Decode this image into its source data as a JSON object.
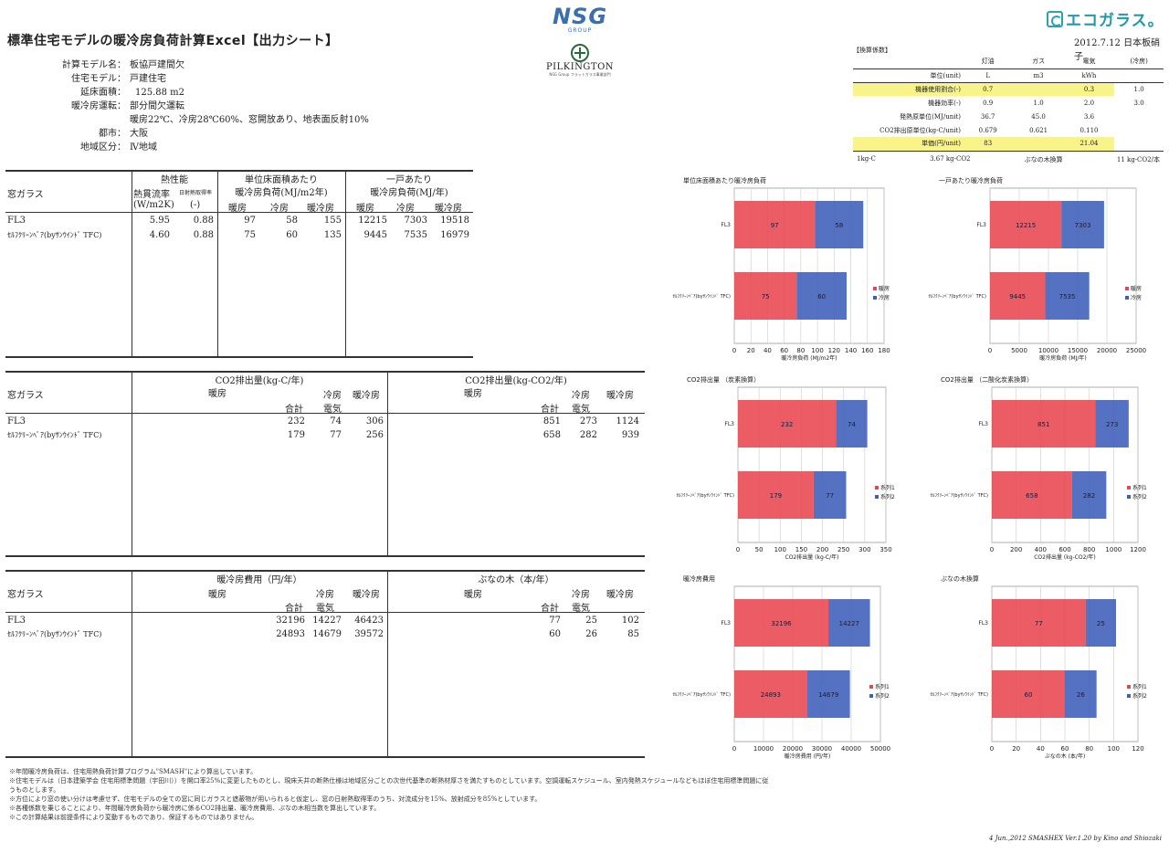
{
  "header": {
    "title": "標準住宅モデルの暖冷房負荷計算Excel【出力シート】",
    "date_company": "2012.7.12 日本板硝子",
    "nsg_logo": "NSG",
    "nsg_group": "GROUP",
    "pilkington_logo": "PILKINGTON",
    "pilkington_sub": "NSG Group フラットガラス事業部門",
    "eco_logo": "エコガラス。"
  },
  "info": [
    {
      "label": "計算モデル名：",
      "value": "板協戸建間欠"
    },
    {
      "label": "住宅モデル：",
      "value": "戸建住宅"
    },
    {
      "label": "延床面積：",
      "value": "125.88 m2"
    },
    {
      "label": "暖冷房運転：",
      "value": "部分間欠運転"
    },
    {
      "label": "",
      "value": "暖房22℃、冷房28℃60%、窓開放あり、地表面反射10%"
    },
    {
      "label": "都市：",
      "value": "大阪"
    },
    {
      "label": "地域区分：",
      "value": "Ⅳ地域"
    }
  ],
  "coef": {
    "title": "【換算係数】",
    "cols": [
      "灯油",
      "ガス",
      "電気",
      "(冷房)"
    ],
    "units_label": "単位(unit)",
    "units": [
      "L",
      "m3",
      "kWh",
      ""
    ],
    "rows": [
      {
        "label": "機器使用割合(-)",
        "v": [
          "0.7",
          "",
          "0.3",
          "1.0"
        ],
        "hl": [
          true,
          true,
          true,
          false
        ],
        "hl_label": true
      },
      {
        "label": "機器効率(-)",
        "v": [
          "0.9",
          "1.0",
          "2.0",
          "3.0"
        ],
        "hl": [
          false,
          false,
          false,
          false
        ],
        "hl_label": false
      },
      {
        "label": "発熱原単位(MJ/unit)",
        "v": [
          "36.7",
          "45.0",
          "3.6",
          ""
        ],
        "hl": [
          false,
          false,
          false,
          false
        ],
        "hl_label": false
      },
      {
        "label": "CO2排出原単位(kg-C/unit)",
        "v": [
          "0.679",
          "0.621",
          "0.110",
          ""
        ],
        "hl": [
          false,
          false,
          false,
          false
        ],
        "hl_label": false
      },
      {
        "label": "単価(円/unit)",
        "v": [
          "83",
          "",
          "21.04",
          ""
        ],
        "hl": [
          true,
          true,
          true,
          false
        ],
        "hl_label": true
      }
    ],
    "foot1": "1kg-C",
    "foot2": "3.67 kg-CO2",
    "foot3": "ぶなの木換算",
    "foot4": "11 kg-CO2/本"
  },
  "table1": {
    "glass_label": "窓ガラス",
    "g1_title": "熱性能",
    "g1_sub1": "熱貫流率",
    "g1_sub2": "日射熱取得率",
    "g1_unit1": "(W/m2K)",
    "g1_unit2": "(-)",
    "g2_title1": "単位床面積あたり",
    "g2_title2": "暖冷房負荷(MJ/m2年)",
    "g3_title1": "一戸あたり",
    "g3_title2": "暖冷房負荷(MJ/年)",
    "h_heat": "暖房",
    "h_cool": "冷房",
    "h_both": "暖冷房",
    "rows": [
      {
        "name": "FL3",
        "u": "5.95",
        "eta": "0.88",
        "a1": "97",
        "a2": "58",
        "a3": "155",
        "b1": "12215",
        "b2": "7303",
        "b3": "19518"
      },
      {
        "name": "ｾﾙﾌｸﾘｰﾝﾍﾞｱ(byｻﾝｳｲﾝﾄﾞ TFC)",
        "u": "4.60",
        "eta": "0.88",
        "a1": "75",
        "a2": "60",
        "a3": "135",
        "b1": "9445",
        "b2": "7535",
        "b3": "16979"
      }
    ]
  },
  "table2": {
    "glass_label": "窓ガラス",
    "g1_title": "CO2排出量(kg-C/年)",
    "g2_title": "CO2排出量(kg-CO2/年)",
    "h_heat": "暖房",
    "h_total": "合計",
    "h_cool": "冷房",
    "h_elec": "電気",
    "h_both": "暖冷房",
    "rows": [
      {
        "name": "FL3",
        "a1": "232",
        "a2": "74",
        "a3": "306",
        "b1": "851",
        "b2": "273",
        "b3": "1124"
      },
      {
        "name": "ｾﾙﾌｸﾘｰﾝﾍﾞｱ(byｻﾝｳｲﾝﾄﾞ TFC)",
        "a1": "179",
        "a2": "77",
        "a3": "256",
        "b1": "658",
        "b2": "282",
        "b3": "939"
      }
    ]
  },
  "table3": {
    "glass_label": "窓ガラス",
    "g1_title": "暖冷房費用（円/年）",
    "g2_title": "ぶなの木（本/年）",
    "h_heat": "暖房",
    "h_total": "合計",
    "h_cool": "冷房",
    "h_elec": "電気",
    "h_both": "暖冷房",
    "rows": [
      {
        "name": "FL3",
        "a1": "32196",
        "a2": "14227",
        "a3": "46423",
        "b1": "77",
        "b2": "25",
        "b3": "102"
      },
      {
        "name": "ｾﾙﾌｸﾘｰﾝﾍﾞｱ(byｻﾝｳｲﾝﾄﾞ TFC)",
        "a1": "24893",
        "a2": "14679",
        "a3": "39572",
        "b1": "60",
        "b2": "26",
        "b3": "85"
      }
    ]
  },
  "colors": {
    "red": "#e8454e",
    "blue": "#3c5fb8"
  },
  "chart_data": [
    {
      "type": "bar",
      "orientation": "horizontal",
      "stacked": true,
      "title": "単位床面積あたり暖冷房負荷",
      "categories": [
        "FL3",
        "ｾﾙﾌｸﾘｰﾝﾍﾞｱ(byｻﾝｳｲﾝﾄﾞ TFC)"
      ],
      "series": [
        {
          "name": "暖房",
          "values": [
            97,
            75
          ]
        },
        {
          "name": "冷房",
          "values": [
            58,
            60
          ]
        }
      ],
      "xlabel": "暖冷房負荷 (MJ/m2年)",
      "xlim": [
        0,
        180
      ],
      "ticks": [
        0,
        20,
        40,
        60,
        80,
        100,
        120,
        140,
        160,
        180
      ]
    },
    {
      "type": "bar",
      "orientation": "horizontal",
      "stacked": true,
      "title": "一戸あたり暖冷房負荷",
      "categories": [
        "FL3",
        "ｾﾙﾌｸﾘｰﾝﾍﾞｱ(byｻﾝｳｲﾝﾄﾞ TFC)"
      ],
      "series": [
        {
          "name": "暖房",
          "values": [
            12215,
            9445
          ]
        },
        {
          "name": "冷房",
          "values": [
            7303,
            7535
          ]
        }
      ],
      "xlabel": "暖冷房負荷 (MJ/年)",
      "xlim": [
        0,
        25000
      ],
      "ticks": [
        0,
        5000,
        10000,
        15000,
        20000,
        25000
      ]
    },
    {
      "type": "bar",
      "orientation": "horizontal",
      "stacked": true,
      "title": "CO2排出量 （炭素換算）",
      "categories": [
        "FL3",
        "ｾﾙﾌｸﾘｰﾝﾍﾞｱ(byｻﾝｳｲﾝﾄﾞ TFC)"
      ],
      "series": [
        {
          "name": "系列1",
          "values": [
            232,
            179
          ]
        },
        {
          "name": "系列2",
          "values": [
            74,
            77
          ]
        }
      ],
      "xlabel": "CO2排出量 (kg-C/年)",
      "xlim": [
        0,
        350
      ],
      "ticks": [
        0,
        50,
        100,
        150,
        200,
        250,
        300,
        350
      ]
    },
    {
      "type": "bar",
      "orientation": "horizontal",
      "stacked": true,
      "title": "CO2排出量 （二酸化炭素換算）",
      "categories": [
        "FL3",
        "ｾﾙﾌｸﾘｰﾝﾍﾞｱ(byｻﾝｳｲﾝﾄﾞ TFC)"
      ],
      "series": [
        {
          "name": "系列1",
          "values": [
            851,
            658
          ]
        },
        {
          "name": "系列2",
          "values": [
            273,
            282
          ]
        }
      ],
      "xlabel": "CO2排出量 (kg-CO2/年)",
      "xlim": [
        0,
        1200
      ],
      "ticks": [
        0,
        200,
        400,
        600,
        800,
        1000,
        1200
      ]
    },
    {
      "type": "bar",
      "orientation": "horizontal",
      "stacked": true,
      "title": "暖冷房費用",
      "categories": [
        "FL3",
        "ｾﾙﾌｸﾘｰﾝﾍﾞｱ(byｻﾝｳｲﾝﾄﾞ TFC)"
      ],
      "series": [
        {
          "name": "系列1",
          "values": [
            32196,
            24893
          ]
        },
        {
          "name": "系列2",
          "values": [
            14227,
            14679
          ]
        }
      ],
      "xlabel": "暖冷房費用 (円/年)",
      "xlim": [
        0,
        50000
      ],
      "ticks": [
        0,
        10000,
        20000,
        30000,
        40000,
        50000
      ]
    },
    {
      "type": "bar",
      "orientation": "horizontal",
      "stacked": true,
      "title": "ぶなの木換算",
      "categories": [
        "FL3",
        "ｾﾙﾌｸﾘｰﾝﾍﾞｱ(byｻﾝｳｲﾝﾄﾞ TFC)"
      ],
      "series": [
        {
          "name": "系列1",
          "values": [
            77,
            60
          ]
        },
        {
          "name": "系列2",
          "values": [
            25,
            26
          ]
        }
      ],
      "xlabel": "ぶなの木 (本/年)",
      "xlim": [
        0,
        120
      ],
      "ticks": [
        0,
        20,
        40,
        60,
        80,
        100,
        120
      ]
    }
  ],
  "notes": [
    "※年間暖冷房負荷は、住宅用熱負荷計算プログラム\"SMASH\"により算出しています。",
    "※住宅モデルは（日本建築学会 住宅用標準問題（宇田川））を開口率25%に変更したものとし、現床天井の断熱仕様は地域区分ごとの次世代基準の断熱材厚さを満たすものとしています。空調運転スケジュール、室内発熱スケジュールなどもほぼ住宅用標準問題に従",
    "うものとします。",
    "※方位により窓の使い分けは考慮せず、住宅モデルの全ての窓に同じガラスと遮蔽物が用いられると仮定し、窓の日射熱取得率のうち、対流成分を15%、放射成分を85%としています。",
    "※各種係数を乗じることにより、年間暖冷房負荷から暖冷房に係るCO2排出量、暖冷房費用、ぶなの木相当数を算出しています。",
    "※この計算結果は前提条件により変動するものであり、保証するものではありません。"
  ],
  "credit": "4 Jun.,2012 SMASHEX Ver.1.20 by Kino and Shiozaki"
}
